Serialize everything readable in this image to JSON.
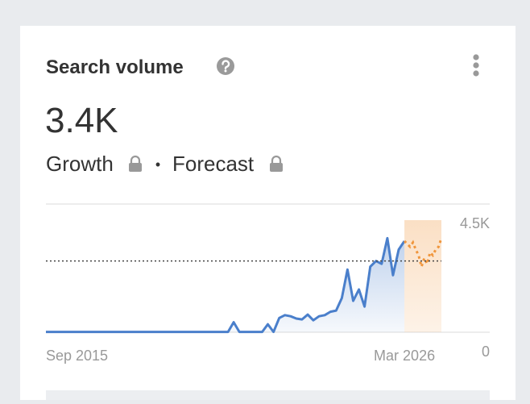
{
  "header": {
    "title": "Search volume",
    "value": "3.4K",
    "growth": "Growth",
    "separator": "•",
    "forecast": "Forecast"
  },
  "chart_data": {
    "type": "line",
    "xlim": [
      0,
      139
    ],
    "xticks": [
      {
        "value": 0,
        "label": "Sep 2015"
      },
      {
        "value": 126,
        "label": "Mar 2026"
      }
    ],
    "ylim": [
      0,
      4500
    ],
    "yticks": [
      0,
      {
        "value": 4500,
        "label": "4.5K"
      }
    ],
    "reference_value": 2500,
    "grid": true,
    "series": [
      {
        "color": "#4a7fcb",
        "x": [
          0,
          2,
          4,
          6,
          8,
          10,
          12,
          14,
          16,
          18,
          20,
          22,
          24,
          26,
          28,
          30,
          32,
          34,
          36,
          38,
          40,
          42,
          44,
          46,
          48,
          50,
          52,
          54,
          56,
          58,
          60,
          62,
          64,
          66,
          68,
          70,
          72,
          74,
          76,
          78,
          80,
          82,
          84,
          86,
          88,
          90,
          92,
          94,
          96,
          98,
          100,
          102,
          104,
          106,
          108,
          110,
          112,
          114,
          116,
          118,
          120,
          122,
          124,
          126
        ],
        "values": [
          10,
          10,
          10,
          10,
          10,
          10,
          10,
          10,
          10,
          10,
          10,
          10,
          10,
          10,
          10,
          10,
          10,
          10,
          10,
          10,
          10,
          10,
          10,
          10,
          10,
          10,
          10,
          10,
          10,
          10,
          10,
          10,
          10,
          350,
          10,
          10,
          10,
          10,
          10,
          280,
          10,
          500,
          600,
          560,
          480,
          450,
          620,
          420,
          560,
          600,
          720,
          760,
          1200,
          2200,
          1100,
          1500,
          900,
          2300,
          2500,
          2400,
          3300,
          2000,
          2900,
          3200
        ]
      },
      {
        "color": "#f0963c",
        "style": "forecast",
        "x": [
          126,
          127,
          128,
          129,
          130,
          131,
          132,
          133,
          134,
          135,
          136,
          137,
          138,
          139
        ],
        "values": [
          3200,
          3100,
          3000,
          3150,
          2900,
          2700,
          2300,
          2600,
          2400,
          2800,
          2700,
          2900,
          3000,
          3300
        ]
      }
    ]
  }
}
